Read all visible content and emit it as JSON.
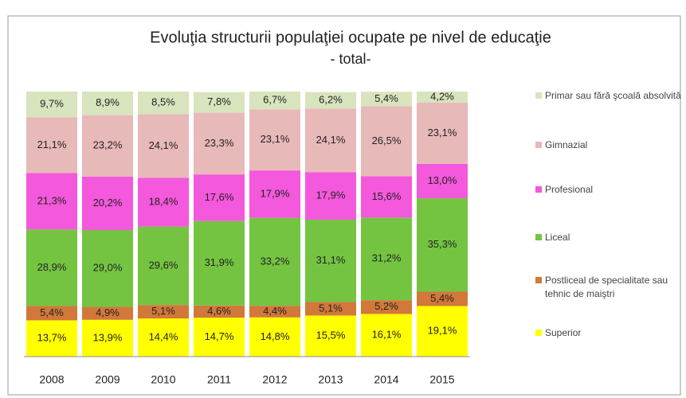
{
  "chart_data": {
    "type": "bar",
    "stacked": true,
    "title": "Evoluţia structurii populaţiei ocupate pe nivel de educaţie",
    "subtitle": "- total-",
    "categories": [
      "2008",
      "2009",
      "2010",
      "2011",
      "2012",
      "2013",
      "2014",
      "2015"
    ],
    "series": [
      {
        "name": "Superior",
        "color": "#ffff00",
        "values": [
          13.7,
          13.9,
          14.4,
          14.7,
          14.8,
          15.5,
          16.1,
          19.1
        ],
        "value_labels": [
          "13,7%",
          "13,9%",
          "14,4%",
          "14,7%",
          "14,8%",
          "15,5%",
          "16,1%",
          "19,1%"
        ]
      },
      {
        "name": "Postliceal de specialitate sau tehnic de maiştri",
        "color": "#d2783a",
        "values": [
          5.4,
          4.9,
          5.1,
          4.6,
          4.4,
          5.1,
          5.2,
          5.4
        ],
        "value_labels": [
          "5,4%",
          "4,9%",
          "5,1%",
          "4,6%",
          "4,4%",
          "5,1%",
          "5,2%",
          "5,4%"
        ]
      },
      {
        "name": "Liceal",
        "color": "#74c442",
        "values": [
          28.9,
          29.0,
          29.6,
          31.9,
          33.2,
          31.1,
          31.2,
          35.3
        ],
        "value_labels": [
          "28,9%",
          "29,0%",
          "29,6%",
          "31,9%",
          "33,2%",
          "31,1%",
          "31,2%",
          "35,3%"
        ]
      },
      {
        "name": "Profesional",
        "color": "#f458dc",
        "values": [
          21.3,
          20.2,
          18.4,
          17.6,
          17.9,
          17.9,
          15.6,
          13.0
        ],
        "value_labels": [
          "21,3%",
          "20,2%",
          "18,4%",
          "17,6%",
          "17,9%",
          "17,9%",
          "15,6%",
          "13,0%"
        ]
      },
      {
        "name": "Gimnazial",
        "color": "#e8b9b9",
        "values": [
          21.1,
          23.2,
          24.1,
          23.3,
          23.1,
          24.1,
          26.5,
          23.1
        ],
        "value_labels": [
          "21,1%",
          "23,2%",
          "24,1%",
          "23,3%",
          "23,1%",
          "24,1%",
          "26,5%",
          "23,1%"
        ]
      },
      {
        "name": "Primar sau fără şcoală absolvită",
        "color": "#d8e4bd",
        "values": [
          9.7,
          8.9,
          8.5,
          7.8,
          6.7,
          6.2,
          5.4,
          4.2
        ],
        "value_labels": [
          "9,7%",
          "8,9%",
          "8,5%",
          "7,8%",
          "6,7%",
          "6,2%",
          "5,4%",
          "4,2%"
        ]
      }
    ]
  }
}
